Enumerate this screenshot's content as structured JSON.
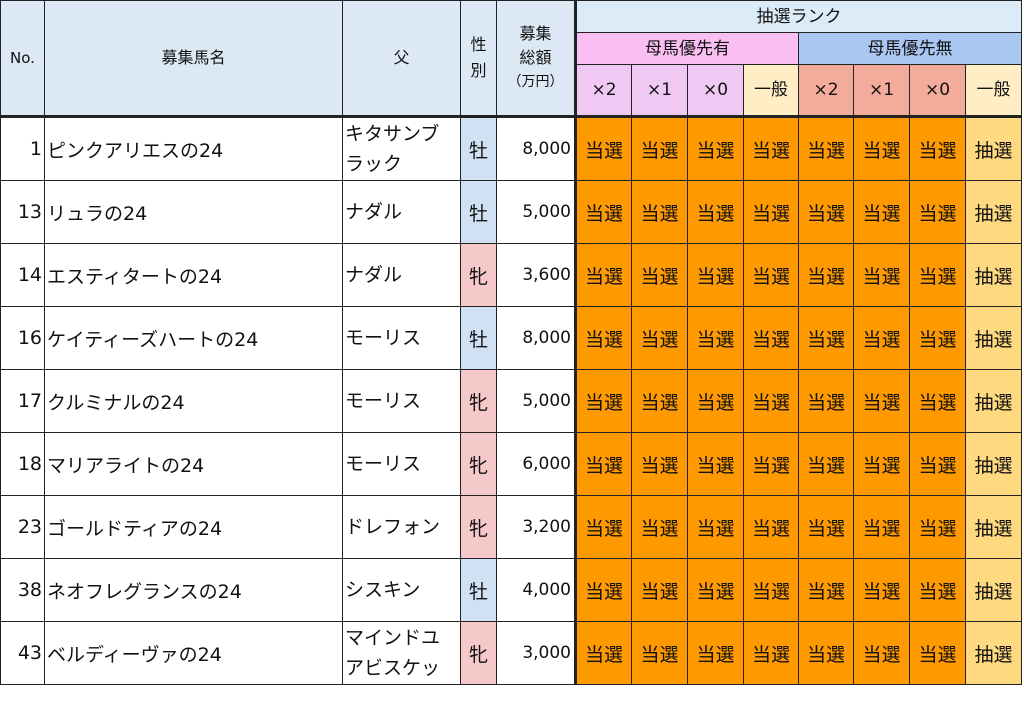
{
  "header": {
    "no": "No.",
    "name": "募集馬名",
    "sire": "父",
    "sex": "性別",
    "price_top": "募集",
    "price_mid": "総額",
    "price_unit": "（万円）",
    "rank": "抽選ランク",
    "group_yu": "母馬優先有",
    "group_mu": "母馬優先無",
    "cols": [
      "×2",
      "×1",
      "×0",
      "一般",
      "×2",
      "×1",
      "×0",
      "一般"
    ]
  },
  "colors": {
    "header_bg": "#dce9f5",
    "yu_bg": "#f9bff2",
    "mu_bg": "#a9c7f2",
    "win_bg": "#ff9900",
    "draw_bg": "#ffd980",
    "male_bg": "#cfe1f3",
    "female_bg": "#f5c8ca"
  },
  "rows": [
    {
      "no": "1",
      "name": "ピンクアリエスの24",
      "sire1": "キタサンブ",
      "sire2": "ラック",
      "sex": "牡",
      "sex_type": "m",
      "price": "8,000",
      "r": [
        "当選",
        "当選",
        "当選",
        "当選",
        "当選",
        "当選",
        "当選",
        "抽選"
      ]
    },
    {
      "no": "13",
      "name": "リュラの24",
      "sire1": "ナダル",
      "sire2": "",
      "sex": "牡",
      "sex_type": "m",
      "price": "5,000",
      "r": [
        "当選",
        "当選",
        "当選",
        "当選",
        "当選",
        "当選",
        "当選",
        "抽選"
      ]
    },
    {
      "no": "14",
      "name": "エスティタートの24",
      "sire1": "ナダル",
      "sire2": "",
      "sex": "牝",
      "sex_type": "f",
      "price": "3,600",
      "r": [
        "当選",
        "当選",
        "当選",
        "当選",
        "当選",
        "当選",
        "当選",
        "抽選"
      ]
    },
    {
      "no": "16",
      "name": "ケイティーズハートの24",
      "sire1": "モーリス",
      "sire2": "",
      "sex": "牡",
      "sex_type": "m",
      "price": "8,000",
      "r": [
        "当選",
        "当選",
        "当選",
        "当選",
        "当選",
        "当選",
        "当選",
        "抽選"
      ]
    },
    {
      "no": "17",
      "name": "クルミナルの24",
      "sire1": "モーリス",
      "sire2": "",
      "sex": "牝",
      "sex_type": "f",
      "price": "5,000",
      "r": [
        "当選",
        "当選",
        "当選",
        "当選",
        "当選",
        "当選",
        "当選",
        "抽選"
      ]
    },
    {
      "no": "18",
      "name": "マリアライトの24",
      "sire1": "モーリス",
      "sire2": "",
      "sex": "牝",
      "sex_type": "f",
      "price": "6,000",
      "r": [
        "当選",
        "当選",
        "当選",
        "当選",
        "当選",
        "当選",
        "当選",
        "抽選"
      ]
    },
    {
      "no": "23",
      "name": "ゴールドティアの24",
      "sire1": "ドレフォン",
      "sire2": "",
      "sex": "牝",
      "sex_type": "f",
      "price": "3,200",
      "r": [
        "当選",
        "当選",
        "当選",
        "当選",
        "当選",
        "当選",
        "当選",
        "抽選"
      ]
    },
    {
      "no": "38",
      "name": "ネオフレグランスの24",
      "sire1": "シスキン",
      "sire2": "",
      "sex": "牡",
      "sex_type": "m",
      "price": "4,000",
      "r": [
        "当選",
        "当選",
        "当選",
        "当選",
        "当選",
        "当選",
        "当選",
        "抽選"
      ]
    },
    {
      "no": "43",
      "name": "ベルディーヴァの24",
      "sire1": "マインドユ",
      "sire2": "アビスケッ",
      "sex": "牝",
      "sex_type": "f",
      "price": "3,000",
      "r": [
        "当選",
        "当選",
        "当選",
        "当選",
        "当選",
        "当選",
        "当選",
        "抽選"
      ]
    }
  ]
}
